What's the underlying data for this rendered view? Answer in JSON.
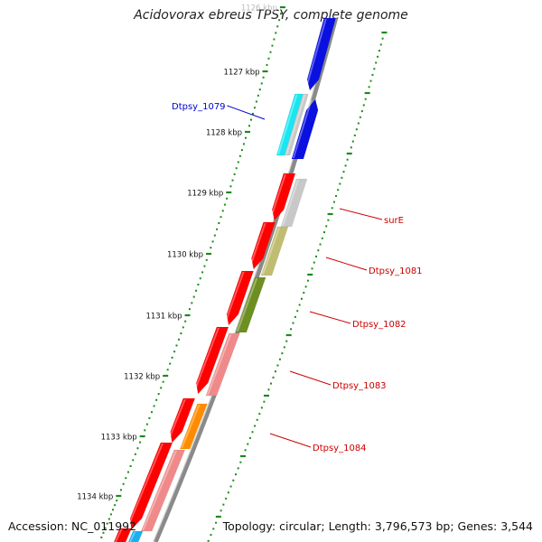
{
  "title": "Acidovorax ebreus TPSY, complete genome",
  "accession": "Accession: NC_011992",
  "summary": "Topology: circular; Length: 3,796,573 bp; Genes: 3,544",
  "scale": {
    "ticks": [
      "1126 kbp",
      "1127 kbp",
      "1128 kbp",
      "1129 kbp",
      "1130 kbp",
      "1131 kbp",
      "1132 kbp",
      "1133 kbp",
      "1134 kbp"
    ],
    "color": "#1a8a1a"
  },
  "gene_labels": [
    {
      "text": "Dtpsy_1079",
      "color": "#0000cc"
    },
    {
      "text": "surE",
      "color": "#cc0000"
    },
    {
      "text": "Dtpsy_1081",
      "color": "#cc0000"
    },
    {
      "text": "Dtpsy_1082",
      "color": "#cc0000"
    },
    {
      "text": "Dtpsy_1083",
      "color": "#cc0000"
    },
    {
      "text": "Dtpsy_1084",
      "color": "#cc0000"
    }
  ],
  "colors": {
    "backbone": "#8a8a8a",
    "gene_blue": "#0a10e0",
    "gene_cyan": "#19e6f0",
    "gene_red": "#ff0000",
    "gene_grey": "#c8c8c8",
    "gene_khaki": "#c0bd72",
    "gene_olive": "#6e8e22",
    "gene_pink": "#f08a8a",
    "gene_orange": "#ff8c00",
    "gene_skyblue": "#1ab0f0"
  }
}
